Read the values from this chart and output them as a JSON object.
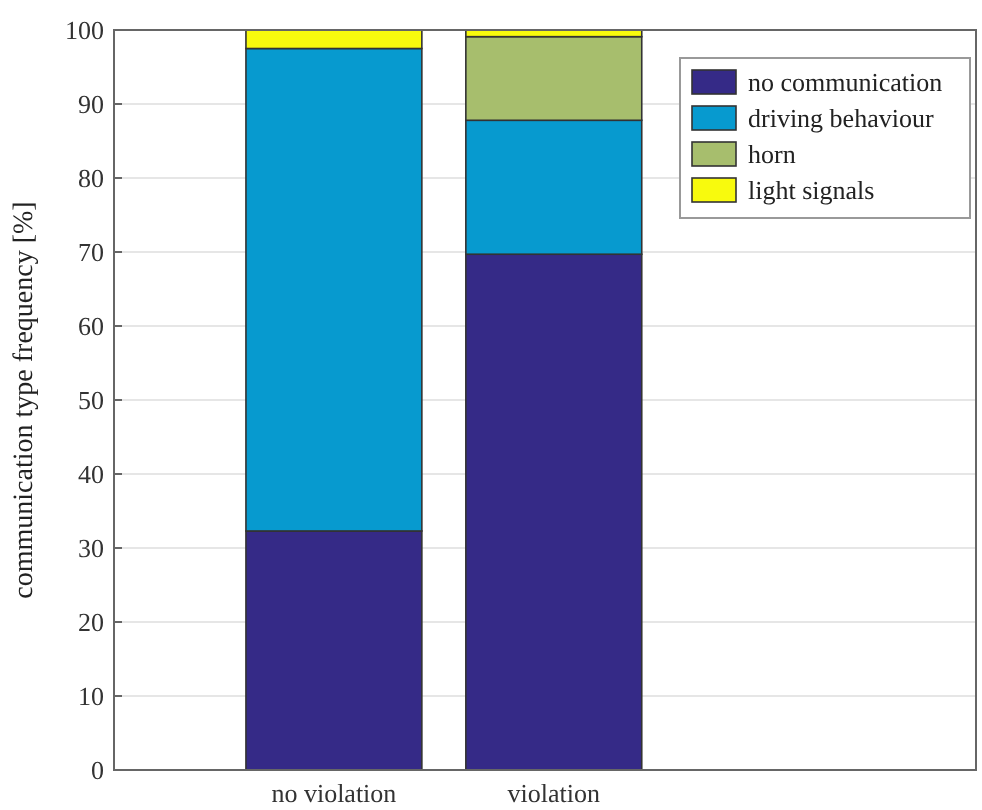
{
  "chart_data": {
    "type": "bar",
    "stacked": true,
    "ylabel": "communication type frequency [%]",
    "categories": [
      "no violation",
      "violation"
    ],
    "series": [
      {
        "name": "no communication",
        "color": "#352a87",
        "values": [
          32.3,
          69.7
        ]
      },
      {
        "name": "driving behaviour",
        "color": "#079acf",
        "values": [
          65.2,
          18.1
        ]
      },
      {
        "name": "horn",
        "color": "#a7be6d",
        "values": [
          0,
          11.3
        ]
      },
      {
        "name": "light signals",
        "color": "#f8fa0d",
        "values": [
          2.5,
          0.9
        ]
      }
    ],
    "ylim": [
      0,
      100
    ],
    "yticks": [
      0,
      10,
      20,
      30,
      40,
      50,
      60,
      70,
      80,
      90,
      100
    ],
    "grid": "y",
    "legend": "top right"
  }
}
